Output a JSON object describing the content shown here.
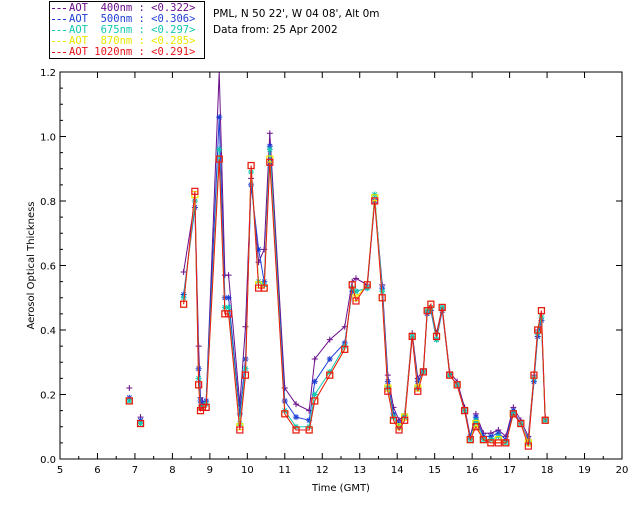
{
  "header": {
    "station": "PML, N 50 22', W 04 08', Alt 0m",
    "date_line": "Data from: 25 Apr 2002"
  },
  "legend": [
    {
      "label": "AOT  400nm : <0.322>",
      "color": "#6a0d8a"
    },
    {
      "label": "AOT  500nm : <0.306>",
      "color": "#1e3fd6"
    },
    {
      "label": "AOT  675nm : <0.297>",
      "color": "#11c9b0"
    },
    {
      "label": "AOT  870nm : <0.285>",
      "color": "#e8e800"
    },
    {
      "label": "AOT 1020nm : <0.291>",
      "color": "#e8141a"
    }
  ],
  "chart_data": {
    "type": "line",
    "title": "",
    "xlabel": "Time (GMT)",
    "ylabel": "Aerosol Optical Thickness",
    "xlim": [
      5,
      20
    ],
    "ylim": [
      0,
      1.2
    ],
    "xticks": [
      "5",
      "6",
      "7",
      "8",
      "9",
      "10",
      "11",
      "12",
      "13",
      "14",
      "15",
      "16",
      "17",
      "18",
      "19",
      "20"
    ],
    "yticks": [
      "0.0",
      "0.2",
      "0.4",
      "0.6",
      "0.8",
      "1.0",
      "1.2"
    ],
    "x": [
      6.85,
      7.15,
      8.3,
      8.6,
      8.7,
      8.75,
      8.8,
      8.9,
      9.25,
      9.4,
      9.5,
      9.8,
      9.95,
      10.1,
      10.3,
      10.45,
      10.6,
      11.0,
      11.3,
      11.65,
      11.8,
      12.2,
      12.6,
      12.8,
      12.9,
      13.2,
      13.4,
      13.6,
      13.75,
      13.9,
      14.05,
      14.2,
      14.4,
      14.55,
      14.7,
      14.8,
      14.9,
      15.05,
      15.2,
      15.4,
      15.6,
      15.8,
      15.95,
      16.1,
      16.3,
      16.5,
      16.7,
      16.9,
      17.1,
      17.3,
      17.5,
      17.65,
      17.75,
      17.85,
      17.95
    ],
    "series": [
      {
        "name": "AOT  400nm : <0.322>",
        "marker": "plus",
        "color": "#6a0d8a",
        "values": [
          0.22,
          0.13,
          0.58,
          0.8,
          0.35,
          0.19,
          0.18,
          0.17,
          1.22,
          0.57,
          0.57,
          0.17,
          0.41,
          0.87,
          0.61,
          0.65,
          1.01,
          0.22,
          0.17,
          0.15,
          0.31,
          0.37,
          0.41,
          0.55,
          0.56,
          0.54,
          0.81,
          0.54,
          0.26,
          0.16,
          0.12,
          0.14,
          0.39,
          0.25,
          0.28,
          0.46,
          0.47,
          0.39,
          0.47,
          0.27,
          0.24,
          0.16,
          0.07,
          0.14,
          0.08,
          0.08,
          0.09,
          0.07,
          0.16,
          0.12,
          0.07,
          0.26,
          0.4,
          0.45,
          0.13
        ]
      },
      {
        "name": "AOT  500nm : <0.306>",
        "marker": "star",
        "color": "#1e3fd6",
        "values": [
          0.19,
          0.12,
          0.51,
          0.78,
          0.28,
          0.18,
          0.17,
          0.18,
          1.06,
          0.5,
          0.5,
          0.14,
          0.31,
          0.85,
          0.65,
          0.55,
          0.97,
          0.18,
          0.13,
          0.12,
          0.24,
          0.31,
          0.36,
          0.52,
          0.52,
          0.53,
          0.8,
          0.53,
          0.24,
          0.14,
          0.11,
          0.13,
          0.38,
          0.24,
          0.27,
          0.45,
          0.46,
          0.37,
          0.46,
          0.26,
          0.23,
          0.15,
          0.07,
          0.13,
          0.07,
          0.07,
          0.08,
          0.06,
          0.15,
          0.11,
          0.06,
          0.24,
          0.38,
          0.43,
          0.12
        ]
      },
      {
        "name": "AOT  675nm : <0.297>",
        "marker": "star",
        "color": "#11c9b0",
        "values": [
          0.18,
          0.11,
          0.5,
          0.8,
          0.25,
          0.16,
          0.16,
          0.17,
          0.96,
          0.47,
          0.47,
          0.11,
          0.28,
          0.89,
          0.55,
          0.54,
          0.96,
          0.15,
          0.1,
          0.1,
          0.2,
          0.27,
          0.35,
          0.53,
          0.52,
          0.53,
          0.82,
          0.52,
          0.22,
          0.13,
          0.1,
          0.13,
          0.38,
          0.22,
          0.27,
          0.46,
          0.47,
          0.37,
          0.47,
          0.26,
          0.23,
          0.15,
          0.06,
          0.12,
          0.06,
          0.06,
          0.07,
          0.05,
          0.14,
          0.11,
          0.05,
          0.25,
          0.39,
          0.44,
          0.12
        ]
      },
      {
        "name": "AOT  870nm : <0.285>",
        "marker": "square",
        "color": "#e8e800",
        "values": [
          0.18,
          0.11,
          0.48,
          0.82,
          0.23,
          0.15,
          0.16,
          0.16,
          0.93,
          0.45,
          0.45,
          0.1,
          0.26,
          0.91,
          0.54,
          0.53,
          0.93,
          0.14,
          0.09,
          0.09,
          0.18,
          0.26,
          0.34,
          0.54,
          0.5,
          0.54,
          0.81,
          0.5,
          0.22,
          0.12,
          0.1,
          0.13,
          0.38,
          0.22,
          0.27,
          0.46,
          0.48,
          0.38,
          0.47,
          0.26,
          0.23,
          0.15,
          0.06,
          0.11,
          0.06,
          0.05,
          0.06,
          0.05,
          0.14,
          0.11,
          0.05,
          0.26,
          0.4,
          0.46,
          0.12
        ]
      },
      {
        "name": "AOT 1020nm : <0.291>",
        "marker": "square",
        "color": "#e8141a",
        "values": [
          0.18,
          0.11,
          0.48,
          0.83,
          0.23,
          0.15,
          0.16,
          0.16,
          0.93,
          0.45,
          0.45,
          0.09,
          0.26,
          0.91,
          0.53,
          0.53,
          0.92,
          0.14,
          0.09,
          0.09,
          0.18,
          0.26,
          0.34,
          0.54,
          0.49,
          0.54,
          0.8,
          0.5,
          0.21,
          0.12,
          0.09,
          0.12,
          0.38,
          0.21,
          0.27,
          0.46,
          0.48,
          0.38,
          0.47,
          0.26,
          0.23,
          0.15,
          0.06,
          0.1,
          0.06,
          0.05,
          0.05,
          0.05,
          0.14,
          0.11,
          0.04,
          0.26,
          0.4,
          0.46,
          0.12
        ]
      }
    ]
  }
}
